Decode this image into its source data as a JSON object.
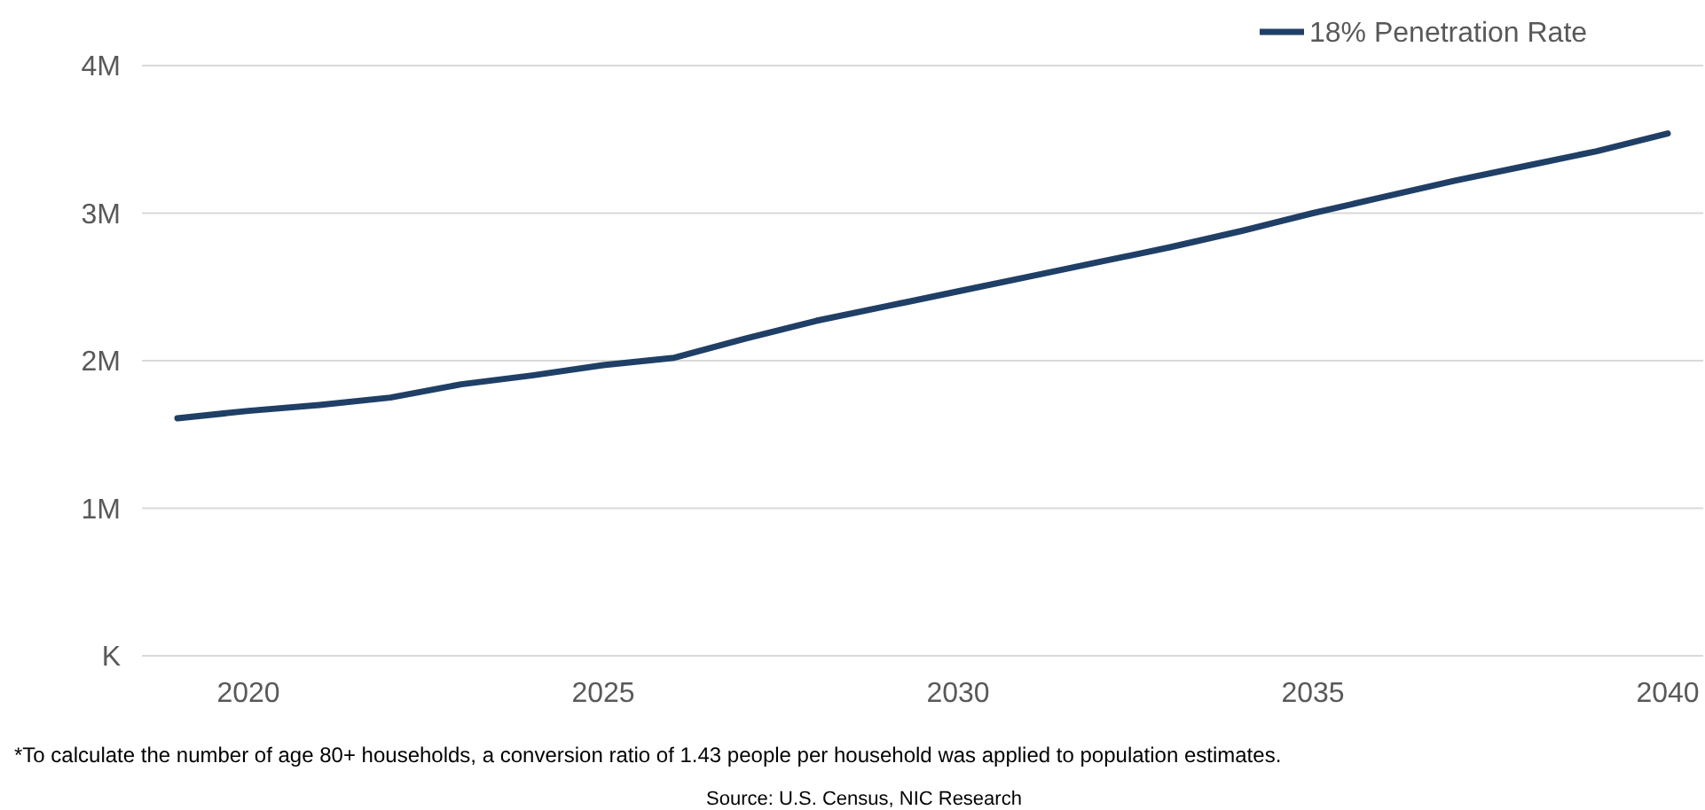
{
  "chart_data": {
    "type": "line",
    "x": [
      2019,
      2020,
      2021,
      2022,
      2023,
      2024,
      2025,
      2026,
      2027,
      2028,
      2029,
      2030,
      2031,
      2032,
      2033,
      2034,
      2035,
      2036,
      2037,
      2038,
      2039,
      2040
    ],
    "series": [
      {
        "name": "18% Penetration Rate",
        "color": "#1f3f66",
        "values": [
          1.61,
          1.66,
          1.7,
          1.75,
          1.84,
          1.9,
          1.97,
          2.02,
          2.15,
          2.27,
          2.37,
          2.47,
          2.57,
          2.67,
          2.77,
          2.88,
          3.0,
          3.11,
          3.22,
          3.32,
          3.42,
          3.54
        ]
      }
    ],
    "xlim": [
      2018.5,
      2040.5
    ],
    "xticks": [
      2020,
      2025,
      2030,
      2035,
      2040
    ],
    "ylim": [
      0,
      4
    ],
    "yticks": [
      {
        "value": 0,
        "label": "K"
      },
      {
        "value": 1,
        "label": "1M"
      },
      {
        "value": 2,
        "label": "2M"
      },
      {
        "value": 3,
        "label": "3M"
      },
      {
        "value": 4,
        "label": "4M"
      }
    ],
    "grid": "y",
    "legend": "top right",
    "marker": "none",
    "line_style": "solid",
    "annotations": [
      "*To calculate the number of age 80+ households, a conversion ratio of 1.43 people per household was applied to population estimates.",
      "Source: U.S. Census, NIC Research"
    ]
  }
}
